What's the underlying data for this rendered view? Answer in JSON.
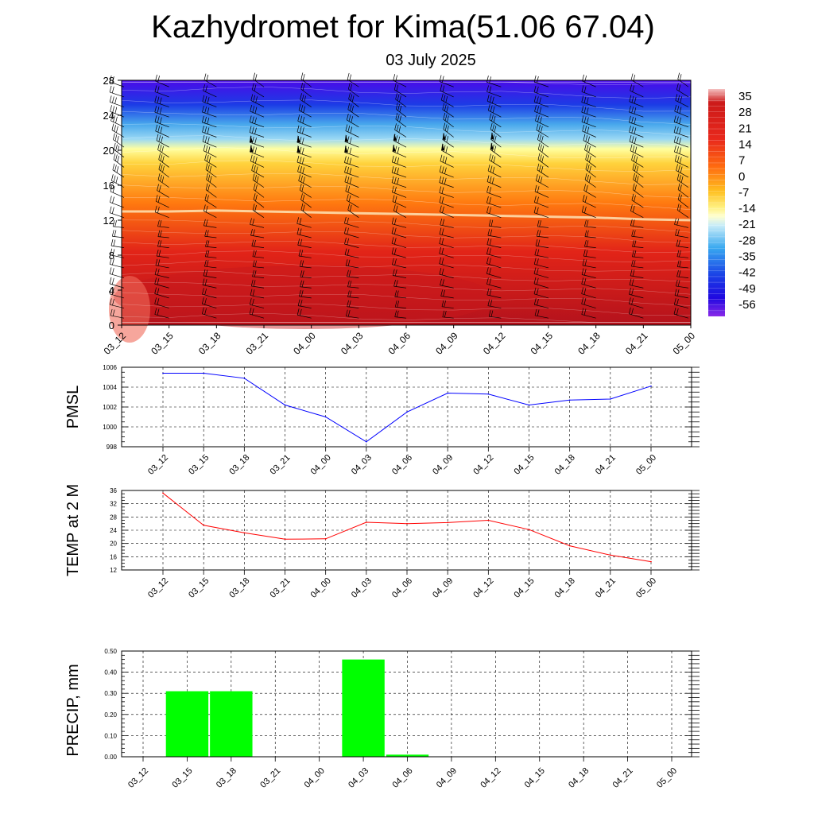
{
  "title": "Kazhydromet for Kima(51.06 67.04)",
  "subtitle": "03 July 2025",
  "time_labels": [
    "03_12",
    "03_15",
    "03_18",
    "03_21",
    "04_00",
    "04_03",
    "04_06",
    "04_09",
    "04_12",
    "04_15",
    "04_18",
    "04_21",
    "05_00"
  ],
  "colors": {
    "pmsl_line": "#0000ff",
    "temp_line": "#ff0000",
    "precip_bar": "#00ff00"
  },
  "chart_data": [
    {
      "type": "heatmap",
      "name": "temperature-height-section",
      "x": [
        "03_12",
        "03_15",
        "03_18",
        "03_21",
        "04_00",
        "04_03",
        "04_06",
        "04_09",
        "04_12",
        "04_15",
        "04_18",
        "04_21",
        "05_00"
      ],
      "ylim": [
        0,
        28
      ],
      "yticks": [
        0,
        4,
        8,
        12,
        16,
        20,
        24,
        28
      ],
      "colorbar_ticks": [
        35,
        28,
        21,
        14,
        7,
        0,
        -7,
        -14,
        -21,
        -28,
        -35,
        -42,
        -49,
        -56
      ],
      "value_range": [
        -60,
        38
      ],
      "freezing_level": [
        13.0,
        13.0,
        13.1,
        13.0,
        12.9,
        12.8,
        12.7,
        12.6,
        12.5,
        12.4,
        12.3,
        12.1,
        12.0
      ],
      "overlay": "wind barbs"
    },
    {
      "type": "line",
      "name": "pmsl",
      "ylabel": "PMSL",
      "x": [
        "03_12",
        "03_15",
        "03_18",
        "03_21",
        "04_00",
        "04_03",
        "04_06",
        "04_09",
        "04_12",
        "04_15",
        "04_18",
        "04_21",
        "05_00"
      ],
      "values": [
        1005.4,
        1005.4,
        1004.9,
        1002.2,
        1001.0,
        998.5,
        1001.5,
        1003.4,
        1003.3,
        1002.2,
        1002.7,
        1002.8,
        1004.1
      ],
      "ylim": [
        998,
        1006
      ],
      "yticks": [
        998,
        1000,
        1002,
        1004,
        1006
      ],
      "grid": true
    },
    {
      "type": "line",
      "name": "temp2m",
      "ylabel": "TEMP at 2 M",
      "x": [
        "03_12",
        "03_15",
        "03_18",
        "03_21",
        "04_00",
        "04_03",
        "04_06",
        "04_09",
        "04_12",
        "04_15",
        "04_18",
        "04_21",
        "05_00"
      ],
      "values": [
        35.2,
        25.5,
        23.2,
        21.3,
        21.4,
        26.4,
        26.0,
        26.3,
        27.0,
        24.2,
        19.3,
        16.5,
        14.5
      ],
      "ylim": [
        12,
        36
      ],
      "yticks": [
        12,
        16,
        20,
        24,
        28,
        32,
        36
      ],
      "grid": true
    },
    {
      "type": "bar",
      "name": "precip",
      "ylabel": "PRECIP, mm",
      "categories": [
        "03_12",
        "03_15",
        "03_18",
        "03_21",
        "04_00",
        "04_03",
        "04_06",
        "04_09",
        "04_12",
        "04_15",
        "04_18",
        "04_21",
        "05_00"
      ],
      "values": [
        0,
        0.31,
        0.31,
        0,
        0,
        0.46,
        0.01,
        0,
        0,
        0,
        0,
        0,
        0
      ],
      "ylim": [
        0,
        0.5
      ],
      "yticks": [
        "0.00",
        "0.10",
        "0.20",
        "0.30",
        "0.40",
        "0.50"
      ],
      "grid": true
    }
  ]
}
